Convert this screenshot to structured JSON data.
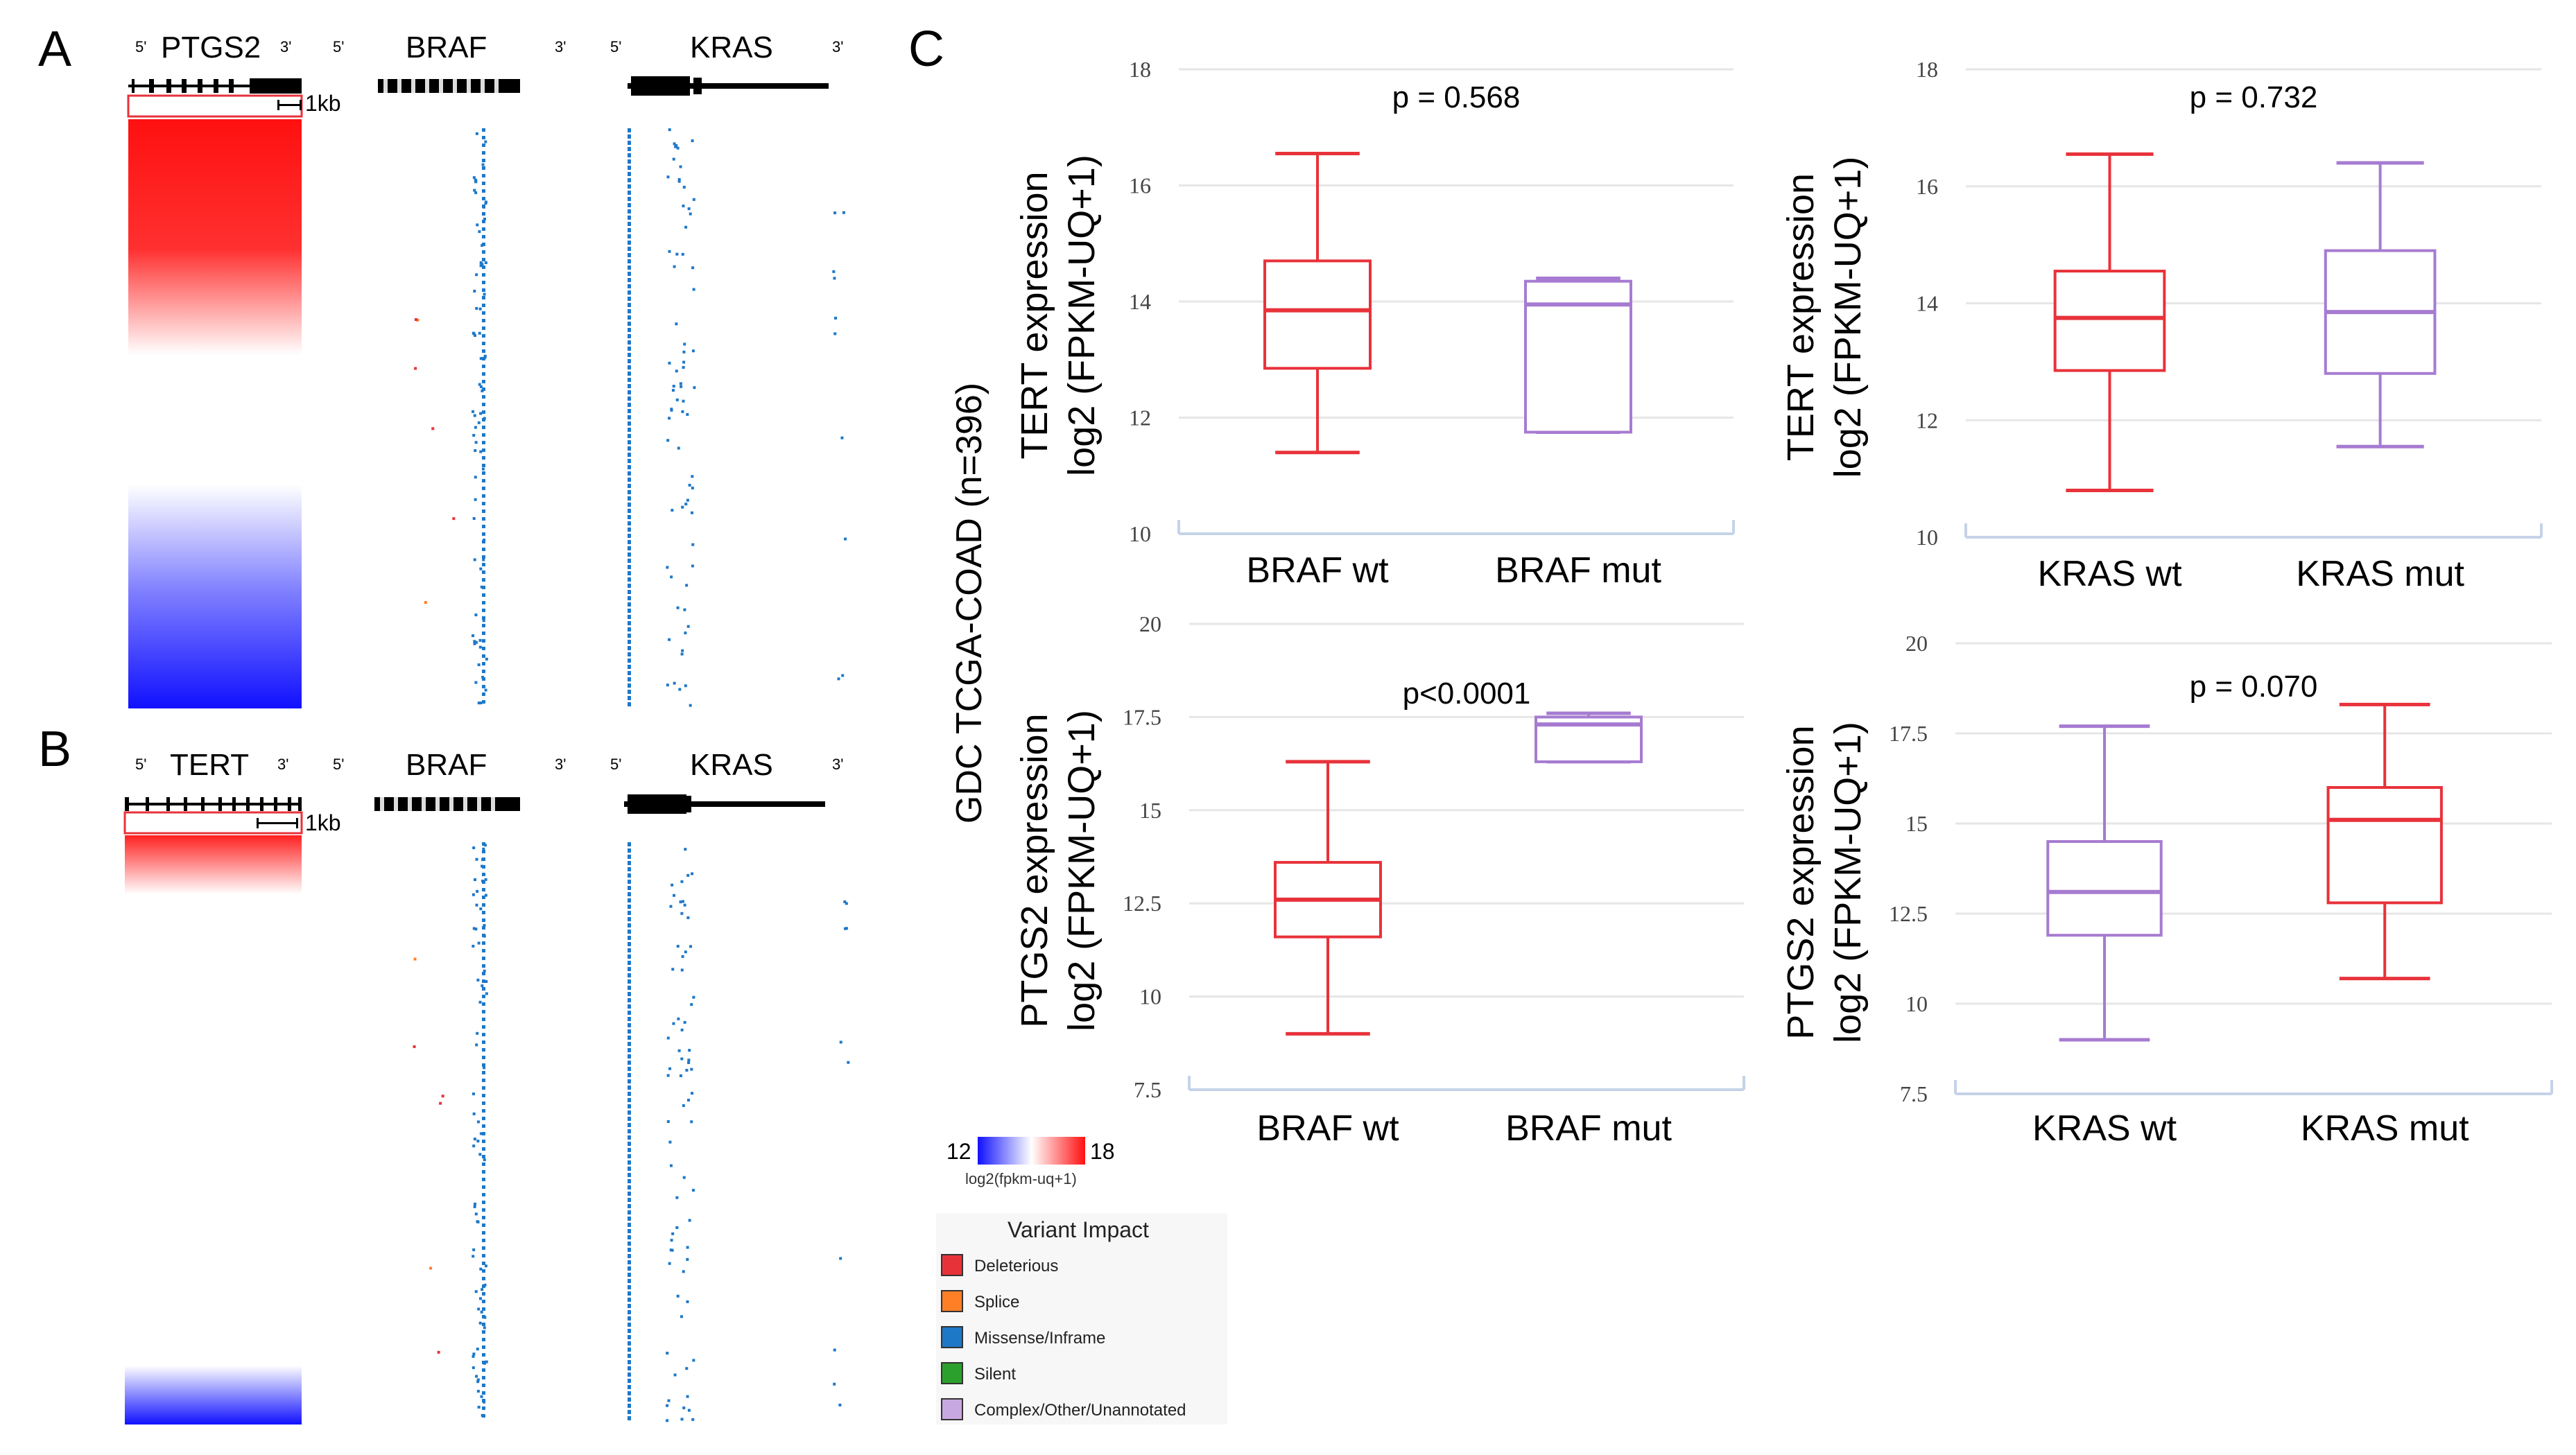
{
  "colors": {
    "red": "#e8323a",
    "purple": "#a67bd1",
    "blue_dot": "#1e78c8",
    "heat_hi": "#ff1a1a",
    "heat_lo": "#1010ff",
    "axis": "#c5d3e8",
    "grid": "#e6e6e6",
    "orange": "#ff7f27"
  },
  "panels": {
    "a": {
      "letter": "A",
      "genes": [
        "PTGS2",
        "BRAF",
        "KRAS"
      ],
      "scale": "1kb",
      "heat": "high-to-low"
    },
    "b": {
      "letter": "B",
      "genes": [
        "TERT",
        "BRAF",
        "KRAS"
      ],
      "scale": "1kb",
      "heat": "high-to-low"
    },
    "c": {
      "letter": "C"
    }
  },
  "strand": {
    "five": "5'",
    "three": "3'"
  },
  "side_label": "GDC TCGA-COAD (n=396)",
  "colorbar": {
    "min": "12",
    "max": "18",
    "label": "log2(fpkm-uq+1)"
  },
  "legend": {
    "title": "Variant Impact",
    "items": [
      {
        "label": "Deleterious",
        "color": "#e8323a"
      },
      {
        "label": "Splice",
        "color": "#ff7f27"
      },
      {
        "label": "Missense/Inframe",
        "color": "#1e78c8"
      },
      {
        "label": "Silent",
        "color": "#2ca02c"
      },
      {
        "label": "Complex/Other/Unannotated",
        "color": "#c8a8e0"
      }
    ]
  },
  "chart_data": [
    {
      "type": "box",
      "title": "p = 0.568",
      "ylabel": [
        "TERT expression",
        "log2 (FPKM-UQ+1)"
      ],
      "ylim": [
        10,
        18
      ],
      "ticks": [
        "10",
        "12",
        "14",
        "16",
        "18"
      ],
      "categories": [
        "BRAF wt",
        "BRAF mut"
      ],
      "boxes": [
        {
          "min": 11.4,
          "q1": 12.85,
          "median": 13.85,
          "q3": 14.7,
          "max": 16.55,
          "color": "red"
        },
        {
          "min": 11.75,
          "q1": 11.75,
          "median": 13.95,
          "q3": 14.35,
          "max": 14.4,
          "color": "purple"
        }
      ]
    },
    {
      "type": "box",
      "title": "p = 0.732",
      "ylabel": [
        "TERT expression",
        "log2 (FPKM-UQ+1)"
      ],
      "ylim": [
        10,
        18
      ],
      "ticks": [
        "10",
        "12",
        "14",
        "16",
        "18"
      ],
      "categories": [
        "KRAS wt",
        "KRAS mut"
      ],
      "boxes": [
        {
          "min": 10.8,
          "q1": 12.85,
          "median": 13.75,
          "q3": 14.55,
          "max": 16.55,
          "color": "red"
        },
        {
          "min": 11.55,
          "q1": 12.8,
          "median": 13.85,
          "q3": 14.9,
          "max": 16.4,
          "color": "purple"
        }
      ]
    },
    {
      "type": "box",
      "title": "p<0.0001",
      "ylabel": [
        "PTGS2 expression",
        "log2 (FPKM-UQ+1)"
      ],
      "ylim": [
        7.5,
        20
      ],
      "ticks": [
        "7.5",
        "10",
        "12.5",
        "15",
        "17.5",
        "20"
      ],
      "categories": [
        "BRAF wt",
        "BRAF mut"
      ],
      "boxes": [
        {
          "min": 9.0,
          "q1": 11.6,
          "median": 12.6,
          "q3": 13.6,
          "max": 16.3,
          "color": "red"
        },
        {
          "min": 16.3,
          "q1": 16.3,
          "median": 17.3,
          "q3": 17.5,
          "max": 17.6,
          "color": "purple"
        }
      ]
    },
    {
      "type": "box",
      "title": "p = 0.070",
      "ylabel": [
        "PTGS2 expression",
        "log2 (FPKM-UQ+1)"
      ],
      "ylim": [
        7.5,
        20
      ],
      "ticks": [
        "7.5",
        "10",
        "12.5",
        "15",
        "17.5",
        "20"
      ],
      "categories": [
        "KRAS wt",
        "KRAS mut"
      ],
      "boxes": [
        {
          "min": 9.0,
          "q1": 11.9,
          "median": 13.1,
          "q3": 14.5,
          "max": 17.7,
          "color": "purple"
        },
        {
          "min": 10.7,
          "q1": 12.8,
          "median": 15.1,
          "q3": 16.0,
          "max": 18.3,
          "color": "red"
        }
      ]
    }
  ]
}
